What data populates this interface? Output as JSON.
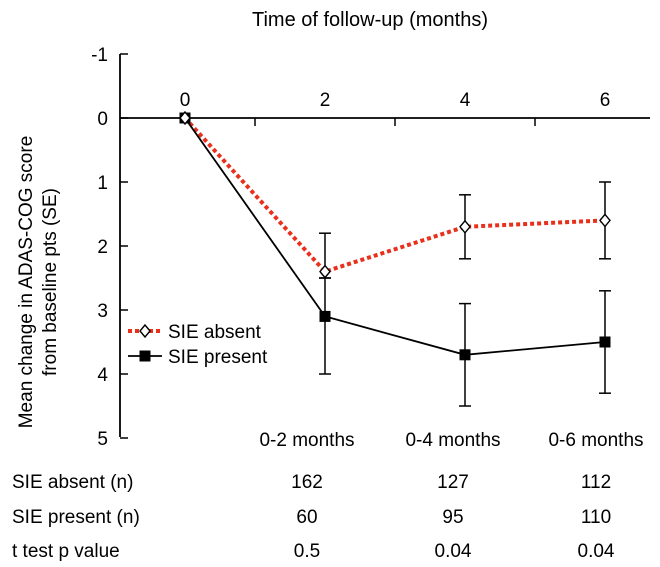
{
  "chart_data": {
    "type": "line",
    "title": "Time of follow-up (months)",
    "ylabel_line1": "Mean change in ADAS-COG score",
    "ylabel_line2": "from baseline pts (SE)",
    "x": [
      0,
      2,
      4,
      6
    ],
    "x_tick_labels": [
      "0",
      "2",
      "4",
      "6"
    ],
    "y_tick_labels": [
      "-1",
      "0",
      "1",
      "2",
      "3",
      "4",
      "5"
    ],
    "ylim": [
      -1,
      5
    ],
    "y_inverted": true,
    "legend_position": "lower-left",
    "series": [
      {
        "name": "SIE absent",
        "color": "#e8301c",
        "line_style": "dotted",
        "marker": "open-diamond",
        "values": [
          0,
          2.4,
          1.7,
          1.6
        ],
        "error_low": [
          null,
          1.8,
          1.2,
          1.0
        ],
        "error_high": [
          null,
          2.5,
          2.2,
          2.2
        ]
      },
      {
        "name": "SIE present",
        "color": "#000000",
        "line_style": "solid",
        "marker": "filled-square",
        "values": [
          0,
          3.1,
          3.7,
          3.5
        ],
        "error_low": [
          null,
          2.5,
          2.9,
          2.7
        ],
        "error_high": [
          null,
          4.0,
          4.5,
          4.3
        ]
      }
    ]
  },
  "table": {
    "headers": [
      "0-2 months",
      "0-4 months",
      "0-6 months"
    ],
    "rows": [
      {
        "label": "SIE absent (n)",
        "values": [
          "162",
          "127",
          "112"
        ]
      },
      {
        "label": "SIE present (n)",
        "values": [
          "60",
          "95",
          "110"
        ]
      },
      {
        "label": "t test p value",
        "values": [
          "0.5",
          "0.04",
          "0.04"
        ]
      }
    ]
  }
}
